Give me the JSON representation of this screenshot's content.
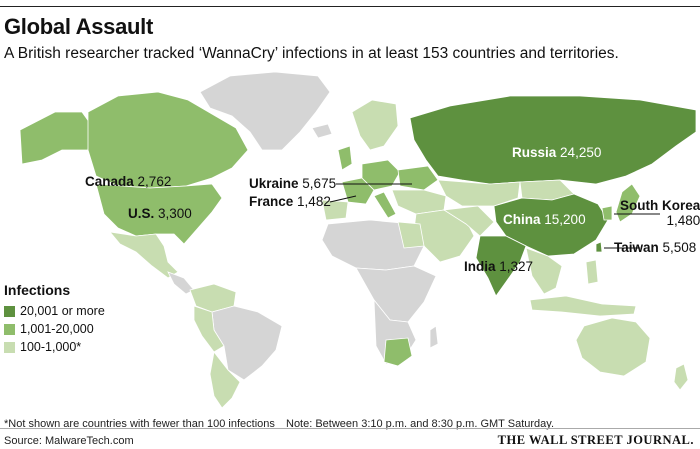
{
  "header": {
    "title": "Global Assault",
    "subtitle": "A British researcher tracked ‘WannaCry’ infections in at least 153 countries and territories."
  },
  "colors": {
    "high": "#5e913f",
    "mid": "#8fbd6b",
    "low": "#c8ddb1",
    "none": "#d5d5d5",
    "border": "#ffffff"
  },
  "legend": {
    "title": "Infections",
    "items": [
      {
        "label": "20,001 or more",
        "color": "#5e913f"
      },
      {
        "label": "1,001-20,000",
        "color": "#8fbd6b"
      },
      {
        "label": "100-1,000*",
        "color": "#c8ddb1"
      }
    ]
  },
  "countries": [
    {
      "name": "Canada",
      "value": "2,762"
    },
    {
      "name": "U.S.",
      "value": "3,300"
    },
    {
      "name": "Ukraine",
      "value": "5,675"
    },
    {
      "name": "France",
      "value": "1,482"
    },
    {
      "name": "Russia",
      "value": "24,250"
    },
    {
      "name": "China",
      "value": "15,200"
    },
    {
      "name": "India",
      "value": "1,327"
    },
    {
      "name": "South Korea",
      "value": "1,480"
    },
    {
      "name": "Taiwan",
      "value": "5,508"
    }
  ],
  "footer": {
    "footnote": "*Not shown are countries with fewer than 100 infections",
    "note": "Note: Between 3:10 p.m. and 8:30 p.m. GMT Saturday.",
    "source": "Source: MalwareTech.com",
    "publisher": "THE WALL STREET JOURNAL."
  }
}
